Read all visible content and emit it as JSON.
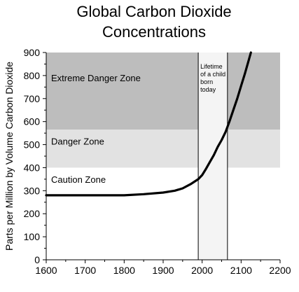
{
  "chart_data": {
    "type": "line",
    "title_lines": [
      "Global Carbon Dioxide",
      "Concentrations"
    ],
    "xlabel": "",
    "ylabel": "Parts per Million by Volume Carbon Dioxide",
    "xlim": [
      1600,
      2200
    ],
    "ylim": [
      0,
      900
    ],
    "x_ticks": [
      1600,
      1700,
      1800,
      1900,
      2000,
      2100,
      2200
    ],
    "y_ticks": [
      0,
      100,
      200,
      300,
      400,
      500,
      600,
      700,
      800,
      900
    ],
    "x_tick_labels": [
      "1600",
      "1700",
      "1800",
      "1900",
      "2000",
      "2100",
      "2200"
    ],
    "y_tick_labels": [
      "0",
      "100",
      "200",
      "300",
      "400",
      "500",
      "600",
      "700",
      "800",
      "900"
    ],
    "grid": false,
    "zones": [
      {
        "label": "Extreme Danger Zone",
        "y_from": 565,
        "y_to": 900,
        "color": "#bdbdbd"
      },
      {
        "label": "Danger Zone",
        "y_from": 400,
        "y_to": 565,
        "color": "#e2e2e2"
      },
      {
        "label": "Caution Zone",
        "y_from": 0,
        "y_to": 400,
        "color": "#ffffff"
      }
    ],
    "highlight_band": {
      "x_from": 1990,
      "x_to": 2065,
      "color": "#f4f4f4",
      "label_lines": [
        "Lifetime",
        "of a child",
        "born",
        "today"
      ]
    },
    "series": [
      {
        "color": "#000000",
        "x": [
          1600,
          1650,
          1700,
          1750,
          1800,
          1850,
          1900,
          1930,
          1950,
          1970,
          1990,
          2000,
          2010,
          2020,
          2030,
          2040,
          2050,
          2060,
          2070,
          2080,
          2090,
          2100,
          2110,
          2120,
          2125
        ],
        "y": [
          280,
          280,
          280,
          280,
          280,
          285,
          292,
          300,
          310,
          328,
          350,
          368,
          395,
          425,
          455,
          490,
          520,
          555,
          600,
          650,
          700,
          755,
          810,
          870,
          900
        ]
      }
    ]
  }
}
